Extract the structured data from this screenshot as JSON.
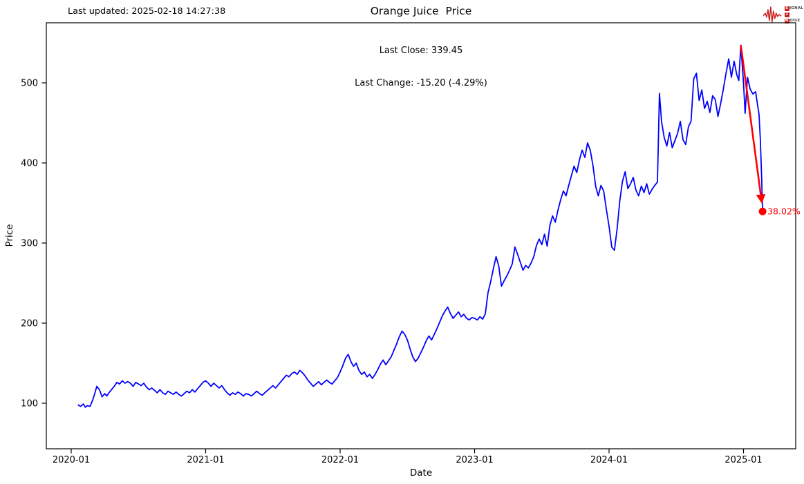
{
  "figure": {
    "last_updated": "Last updated: 2025-02-18 14:27:38",
    "title": "Orange Juice  Price",
    "last_close_line": "Last Close: 339.45",
    "last_change_line": "Last Change: -15.20 (-4.29%)"
  },
  "logo": {
    "row1_boxed": "S",
    "row1_text": "IGNAL",
    "row2_boxed": "2",
    "row2_text": "",
    "row3_boxed": "N",
    "row3_text": "OISE",
    "red": "#c8201d"
  },
  "annotation": {
    "label": "38.02%",
    "color": "#ff0000",
    "start": {
      "x": 2024.98,
      "price": 547
    },
    "arrow_tip": {
      "x": 2025.135,
      "price": 352
    },
    "dot": {
      "x": 2025.142,
      "price": 339.45
    }
  },
  "chart_data": {
    "type": "line",
    "title": "Orange Juice  Price",
    "xlabel": "Date",
    "ylabel": "Price",
    "x_ticks": [
      {
        "label": "2020-01",
        "year": 2020
      },
      {
        "label": "2021-01",
        "year": 2021
      },
      {
        "label": "2022-01",
        "year": 2022
      },
      {
        "label": "2023-01",
        "year": 2023
      },
      {
        "label": "2024-01",
        "year": 2024
      },
      {
        "label": "2025-01",
        "year": 2025
      }
    ],
    "y_ticks": [
      100,
      200,
      300,
      400,
      500
    ],
    "xlim_years": [
      2019.82,
      2025.39
    ],
    "ylim": [
      43,
      575
    ],
    "grid": false,
    "legend": "none",
    "line_color": "#0000ff",
    "last_close": 339.45,
    "last_change_abs": -15.2,
    "last_change_pct": -4.29,
    "drawdown_from_peak_pct": -38.02,
    "series": [
      {
        "name": "Orange Juice Price",
        "points": [
          [
            2020.05,
            98
          ],
          [
            2020.07,
            96
          ],
          [
            2020.09,
            99
          ],
          [
            2020.105,
            95
          ],
          [
            2020.12,
            97
          ],
          [
            2020.14,
            96
          ],
          [
            2020.16,
            104
          ],
          [
            2020.175,
            112
          ],
          [
            2020.19,
            121
          ],
          [
            2020.21,
            117
          ],
          [
            2020.23,
            108
          ],
          [
            2020.25,
            112
          ],
          [
            2020.265,
            109
          ],
          [
            2020.28,
            113
          ],
          [
            2020.3,
            117
          ],
          [
            2020.32,
            121
          ],
          [
            2020.34,
            126
          ],
          [
            2020.36,
            124
          ],
          [
            2020.38,
            128
          ],
          [
            2020.4,
            125
          ],
          [
            2020.42,
            127
          ],
          [
            2020.44,
            125
          ],
          [
            2020.46,
            121
          ],
          [
            2020.48,
            126
          ],
          [
            2020.5,
            124
          ],
          [
            2020.52,
            122
          ],
          [
            2020.54,
            125
          ],
          [
            2020.56,
            120
          ],
          [
            2020.58,
            117
          ],
          [
            2020.6,
            119
          ],
          [
            2020.62,
            116
          ],
          [
            2020.64,
            113
          ],
          [
            2020.66,
            117
          ],
          [
            2020.68,
            113
          ],
          [
            2020.7,
            111
          ],
          [
            2020.72,
            115
          ],
          [
            2020.74,
            113
          ],
          [
            2020.76,
            111
          ],
          [
            2020.78,
            114
          ],
          [
            2020.8,
            111
          ],
          [
            2020.82,
            109
          ],
          [
            2020.84,
            112
          ],
          [
            2020.86,
            115
          ],
          [
            2020.88,
            113
          ],
          [
            2020.9,
            117
          ],
          [
            2020.92,
            114
          ],
          [
            2020.94,
            118
          ],
          [
            2020.96,
            122
          ],
          [
            2020.98,
            126
          ],
          [
            2021.0,
            128
          ],
          [
            2021.02,
            125
          ],
          [
            2021.04,
            121
          ],
          [
            2021.06,
            125
          ],
          [
            2021.08,
            122
          ],
          [
            2021.1,
            119
          ],
          [
            2021.12,
            122
          ],
          [
            2021.14,
            117
          ],
          [
            2021.16,
            113
          ],
          [
            2021.18,
            110
          ],
          [
            2021.2,
            113
          ],
          [
            2021.22,
            111
          ],
          [
            2021.24,
            114
          ],
          [
            2021.26,
            112
          ],
          [
            2021.28,
            109
          ],
          [
            2021.3,
            112
          ],
          [
            2021.32,
            111
          ],
          [
            2021.34,
            109
          ],
          [
            2021.36,
            112
          ],
          [
            2021.38,
            115
          ],
          [
            2021.4,
            112
          ],
          [
            2021.42,
            110
          ],
          [
            2021.44,
            113
          ],
          [
            2021.46,
            116
          ],
          [
            2021.48,
            119
          ],
          [
            2021.5,
            122
          ],
          [
            2021.52,
            119
          ],
          [
            2021.54,
            123
          ],
          [
            2021.56,
            127
          ],
          [
            2021.58,
            131
          ],
          [
            2021.6,
            135
          ],
          [
            2021.62,
            133
          ],
          [
            2021.64,
            137
          ],
          [
            2021.66,
            139
          ],
          [
            2021.68,
            136
          ],
          [
            2021.7,
            141
          ],
          [
            2021.72,
            138
          ],
          [
            2021.74,
            134
          ],
          [
            2021.76,
            129
          ],
          [
            2021.78,
            125
          ],
          [
            2021.8,
            121
          ],
          [
            2021.82,
            124
          ],
          [
            2021.84,
            127
          ],
          [
            2021.86,
            123
          ],
          [
            2021.88,
            126
          ],
          [
            2021.9,
            129
          ],
          [
            2021.92,
            126
          ],
          [
            2021.94,
            124
          ],
          [
            2021.96,
            128
          ],
          [
            2021.98,
            132
          ],
          [
            2022.0,
            139
          ],
          [
            2022.02,
            147
          ],
          [
            2022.04,
            156
          ],
          [
            2022.06,
            161
          ],
          [
            2022.08,
            152
          ],
          [
            2022.1,
            146
          ],
          [
            2022.12,
            150
          ],
          [
            2022.14,
            141
          ],
          [
            2022.16,
            136
          ],
          [
            2022.18,
            139
          ],
          [
            2022.2,
            133
          ],
          [
            2022.22,
            136
          ],
          [
            2022.24,
            131
          ],
          [
            2022.26,
            136
          ],
          [
            2022.28,
            142
          ],
          [
            2022.3,
            149
          ],
          [
            2022.32,
            154
          ],
          [
            2022.34,
            148
          ],
          [
            2022.36,
            153
          ],
          [
            2022.38,
            158
          ],
          [
            2022.4,
            166
          ],
          [
            2022.42,
            174
          ],
          [
            2022.44,
            183
          ],
          [
            2022.46,
            190
          ],
          [
            2022.48,
            186
          ],
          [
            2022.5,
            179
          ],
          [
            2022.52,
            168
          ],
          [
            2022.54,
            158
          ],
          [
            2022.56,
            152
          ],
          [
            2022.58,
            156
          ],
          [
            2022.6,
            163
          ],
          [
            2022.62,
            170
          ],
          [
            2022.64,
            178
          ],
          [
            2022.66,
            184
          ],
          [
            2022.68,
            179
          ],
          [
            2022.7,
            186
          ],
          [
            2022.72,
            193
          ],
          [
            2022.74,
            201
          ],
          [
            2022.76,
            209
          ],
          [
            2022.78,
            215
          ],
          [
            2022.8,
            220
          ],
          [
            2022.82,
            212
          ],
          [
            2022.84,
            206
          ],
          [
            2022.86,
            210
          ],
          [
            2022.88,
            214
          ],
          [
            2022.9,
            208
          ],
          [
            2022.92,
            211
          ],
          [
            2022.94,
            206
          ],
          [
            2022.96,
            204
          ],
          [
            2022.98,
            207
          ],
          [
            2023.0,
            206
          ],
          [
            2023.02,
            204
          ],
          [
            2023.04,
            208
          ],
          [
            2023.06,
            205
          ],
          [
            2023.08,
            212
          ],
          [
            2023.1,
            238
          ],
          [
            2023.12,
            252
          ],
          [
            2023.14,
            268
          ],
          [
            2023.16,
            283
          ],
          [
            2023.18,
            271
          ],
          [
            2023.2,
            246
          ],
          [
            2023.22,
            253
          ],
          [
            2023.24,
            259
          ],
          [
            2023.26,
            266
          ],
          [
            2023.28,
            274
          ],
          [
            2023.3,
            295
          ],
          [
            2023.32,
            286
          ],
          [
            2023.34,
            276
          ],
          [
            2023.36,
            266
          ],
          [
            2023.38,
            272
          ],
          [
            2023.4,
            269
          ],
          [
            2023.42,
            275
          ],
          [
            2023.44,
            283
          ],
          [
            2023.46,
            297
          ],
          [
            2023.48,
            305
          ],
          [
            2023.5,
            298
          ],
          [
            2023.52,
            311
          ],
          [
            2023.54,
            296
          ],
          [
            2023.56,
            322
          ],
          [
            2023.58,
            334
          ],
          [
            2023.6,
            326
          ],
          [
            2023.62,
            341
          ],
          [
            2023.64,
            354
          ],
          [
            2023.66,
            365
          ],
          [
            2023.68,
            359
          ],
          [
            2023.7,
            372
          ],
          [
            2023.72,
            384
          ],
          [
            2023.74,
            396
          ],
          [
            2023.76,
            388
          ],
          [
            2023.78,
            404
          ],
          [
            2023.8,
            416
          ],
          [
            2023.82,
            407
          ],
          [
            2023.84,
            425
          ],
          [
            2023.86,
            416
          ],
          [
            2023.88,
            397
          ],
          [
            2023.9,
            371
          ],
          [
            2023.92,
            359
          ],
          [
            2023.94,
            372
          ],
          [
            2023.96,
            365
          ],
          [
            2023.98,
            342
          ],
          [
            2024.0,
            321
          ],
          [
            2024.02,
            295
          ],
          [
            2024.04,
            291
          ],
          [
            2024.06,
            318
          ],
          [
            2024.08,
            353
          ],
          [
            2024.1,
            377
          ],
          [
            2024.12,
            389
          ],
          [
            2024.14,
            368
          ],
          [
            2024.16,
            374
          ],
          [
            2024.18,
            382
          ],
          [
            2024.2,
            366
          ],
          [
            2024.22,
            359
          ],
          [
            2024.24,
            371
          ],
          [
            2024.26,
            363
          ],
          [
            2024.28,
            374
          ],
          [
            2024.3,
            361
          ],
          [
            2024.32,
            367
          ],
          [
            2024.34,
            372
          ],
          [
            2024.36,
            376
          ],
          [
            2024.375,
            487
          ],
          [
            2024.39,
            452
          ],
          [
            2024.41,
            432
          ],
          [
            2024.43,
            421
          ],
          [
            2024.45,
            438
          ],
          [
            2024.47,
            419
          ],
          [
            2024.49,
            428
          ],
          [
            2024.51,
            437
          ],
          [
            2024.53,
            452
          ],
          [
            2024.55,
            429
          ],
          [
            2024.57,
            423
          ],
          [
            2024.59,
            445
          ],
          [
            2024.61,
            452
          ],
          [
            2024.63,
            505
          ],
          [
            2024.65,
            512
          ],
          [
            2024.67,
            478
          ],
          [
            2024.69,
            491
          ],
          [
            2024.71,
            468
          ],
          [
            2024.73,
            477
          ],
          [
            2024.75,
            463
          ],
          [
            2024.77,
            484
          ],
          [
            2024.79,
            479
          ],
          [
            2024.81,
            458
          ],
          [
            2024.83,
            474
          ],
          [
            2024.85,
            492
          ],
          [
            2024.87,
            512
          ],
          [
            2024.89,
            530
          ],
          [
            2024.91,
            507
          ],
          [
            2024.93,
            527
          ],
          [
            2024.95,
            510
          ],
          [
            2024.965,
            503
          ],
          [
            2024.98,
            547
          ],
          [
            2025.0,
            500
          ],
          [
            2025.012,
            462
          ],
          [
            2025.03,
            507
          ],
          [
            2025.05,
            492
          ],
          [
            2025.07,
            486
          ],
          [
            2025.09,
            489
          ],
          [
            2025.105,
            472
          ],
          [
            2025.115,
            461
          ],
          [
            2025.125,
            430
          ],
          [
            2025.135,
            380
          ],
          [
            2025.142,
            339.45
          ]
        ]
      }
    ]
  }
}
